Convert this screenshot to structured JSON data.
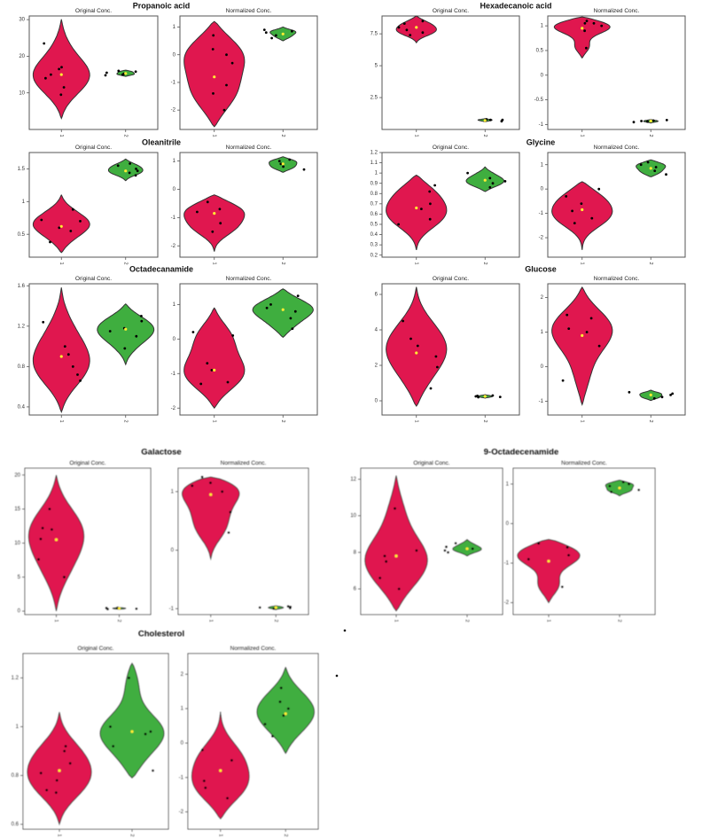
{
  "figure": {
    "colors": {
      "group1": "#e0174f",
      "group2": "#3fae3f",
      "points": "#000000",
      "mean": "#ffee33"
    },
    "panel_titles": [
      "Original Conc.",
      "Normalized Conc."
    ],
    "group_tick_labels": [
      "1",
      "2"
    ]
  },
  "chart_data": [
    {
      "type": "violin",
      "metabolite": "Propanoic acid",
      "panels": [
        {
          "title": "Original Conc.",
          "ylim": [
            0,
            31
          ],
          "yticks": [
            10,
            20,
            30
          ],
          "groups": [
            {
              "label": "1",
              "violin_range": [
                3,
                30
              ],
              "mean": 15,
              "points": [
                9.5,
                11.5,
                14,
                15,
                16.5,
                17,
                23.5
              ]
            },
            {
              "label": "2",
              "violin_range": [
                14.5,
                16.2
              ],
              "mean": 15.3,
              "points": [
                14.8,
                15,
                15.2,
                15.5,
                15.8,
                16
              ]
            }
          ]
        },
        {
          "title": "Normalized Conc.",
          "ylim": [
            -2.7,
            1.4
          ],
          "yticks": [
            -2,
            -1,
            0,
            1
          ],
          "groups": [
            {
              "label": "1",
              "violin_range": [
                -2.6,
                1.2
              ],
              "mean": -0.8,
              "points": [
                -2,
                -1.4,
                -1.1,
                -0.3,
                0,
                0.2,
                0.7
              ]
            },
            {
              "label": "2",
              "violin_range": [
                0.5,
                1
              ],
              "mean": 0.75,
              "points": [
                0.6,
                0.7,
                0.8,
                0.85,
                0.9
              ]
            }
          ]
        }
      ]
    },
    {
      "type": "violin",
      "metabolite": "Hexadecanoic acid",
      "panels": [
        {
          "title": "Original Conc.",
          "ylim": [
            0,
            8.9
          ],
          "yticks": [
            2.5,
            5,
            7.5
          ],
          "groups": [
            {
              "label": "1",
              "violin_range": [
                6.8,
                8.9
              ],
              "mean": 8,
              "points": [
                7.4,
                7.6,
                7.8,
                8,
                8.3,
                8.5
              ]
            },
            {
              "label": "2",
              "violin_range": [
                0.6,
                0.85
              ],
              "mean": 0.7,
              "points": [
                0.65,
                0.7,
                0.75,
                0.75,
                0.8
              ]
            }
          ]
        },
        {
          "title": "Normalized Conc.",
          "ylim": [
            -1.1,
            1.2
          ],
          "yticks": [
            -1,
            -0.5,
            0,
            0.5,
            1
          ],
          "groups": [
            {
              "label": "1",
              "violin_range": [
                0.35,
                1.18
              ],
              "mean": 0.95,
              "points": [
                0.55,
                0.9,
                1,
                1.05,
                1.05,
                1.1
              ]
            },
            {
              "label": "2",
              "violin_range": [
                -0.97,
                -0.9
              ],
              "mean": -0.93,
              "points": [
                -0.95,
                -0.94,
                -0.93,
                -0.92,
                -0.91
              ]
            }
          ]
        }
      ]
    },
    {
      "type": "violin",
      "metabolite": "Oleanitrile",
      "panels": [
        {
          "title": "Original Conc.",
          "ylim": [
            0.15,
            1.75
          ],
          "yticks": [
            0.5,
            1,
            1.5
          ],
          "groups": [
            {
              "label": "1",
              "violin_range": [
                0.22,
                1.1
              ],
              "mean": 0.62,
              "points": [
                0.38,
                0.55,
                0.6,
                0.7,
                0.72,
                0.88
              ]
            },
            {
              "label": "2",
              "violin_range": [
                1.32,
                1.65
              ],
              "mean": 1.47,
              "points": [
                1.4,
                1.44,
                1.47,
                1.5,
                1.55,
                1.58
              ]
            }
          ]
        },
        {
          "title": "Normalized Conc.",
          "ylim": [
            -2.4,
            1.3
          ],
          "yticks": [
            -2,
            -1,
            0,
            1
          ],
          "groups": [
            {
              "label": "1",
              "violin_range": [
                -2.2,
                -0.2
              ],
              "mean": -0.85,
              "points": [
                -1.5,
                -1.2,
                -0.8,
                -0.7,
                -0.45
              ]
            },
            {
              "label": "2",
              "violin_range": [
                0.6,
                1.15
              ],
              "mean": 0.9,
              "points": [
                0.7,
                0.8,
                0.9,
                1,
                1.05
              ]
            }
          ]
        }
      ]
    },
    {
      "type": "violin",
      "metabolite": "Glycine",
      "panels": [
        {
          "title": "Original Conc.",
          "ylim": [
            0.18,
            1.2
          ],
          "yticks": [
            0.2,
            0.3,
            0.4,
            0.5,
            0.6,
            0.7,
            0.8,
            0.9,
            1,
            1.1,
            1.2
          ],
          "groups": [
            {
              "label": "1",
              "violin_range": [
                0.25,
                0.98
              ],
              "mean": 0.66,
              "points": [
                0.5,
                0.55,
                0.65,
                0.7,
                0.82,
                0.88
              ]
            },
            {
              "label": "2",
              "violin_range": [
                0.82,
                1.06
              ],
              "mean": 0.93,
              "points": [
                0.86,
                0.9,
                0.92,
                0.95,
                1
              ]
            }
          ]
        },
        {
          "title": "Normalized Conc.",
          "ylim": [
            -2.8,
            1.5
          ],
          "yticks": [
            -2,
            -1,
            0,
            1
          ],
          "groups": [
            {
              "label": "1",
              "violin_range": [
                -2.5,
                0.3
              ],
              "mean": -0.85,
              "points": [
                -1.4,
                -1.2,
                -0.9,
                -0.6,
                -0.3,
                0
              ]
            },
            {
              "label": "2",
              "violin_range": [
                0.5,
                1.2
              ],
              "mean": 0.85,
              "points": [
                0.6,
                0.75,
                0.9,
                1,
                1.1
              ]
            }
          ]
        }
      ]
    },
    {
      "type": "violin",
      "metabolite": "Octadecanamide",
      "panels": [
        {
          "title": "Original Conc.",
          "ylim": [
            0.32,
            1.62
          ],
          "yticks": [
            0.4,
            0.8,
            1.2,
            1.6
          ],
          "groups": [
            {
              "label": "1",
              "violin_range": [
                0.35,
                1.58
              ],
              "mean": 0.9,
              "points": [
                0.66,
                0.72,
                0.8,
                0.92,
                1,
                1.24
              ]
            },
            {
              "label": "2",
              "violin_range": [
                0.82,
                1.42
              ],
              "mean": 1.17,
              "points": [
                0.98,
                1.1,
                1.15,
                1.18,
                1.25,
                1.3
              ]
            }
          ]
        },
        {
          "title": "Normalized Conc.",
          "ylim": [
            -2.2,
            1.6
          ],
          "yticks": [
            -2,
            -1,
            0,
            1
          ],
          "groups": [
            {
              "label": "1",
              "violin_range": [
                -2,
                0.9
              ],
              "mean": -0.9,
              "points": [
                -1.3,
                -1.25,
                -0.9,
                -0.7,
                0.1,
                0.2
              ]
            },
            {
              "label": "2",
              "violin_range": [
                0.05,
                1.45
              ],
              "mean": 0.85,
              "points": [
                0.3,
                0.6,
                0.8,
                0.9,
                1,
                1.25
              ]
            }
          ]
        }
      ]
    },
    {
      "type": "violin",
      "metabolite": "Glucose",
      "panels": [
        {
          "title": "Original Conc.",
          "ylim": [
            -0.8,
            6.6
          ],
          "yticks": [
            0,
            2,
            4,
            6
          ],
          "groups": [
            {
              "label": "1",
              "violin_range": [
                -0.3,
                6.4
              ],
              "mean": 2.7,
              "points": [
                0.7,
                1.9,
                2.5,
                3.1,
                3.5,
                4.5
              ]
            },
            {
              "label": "2",
              "violin_range": [
                0.15,
                0.35
              ],
              "mean": 0.25,
              "points": [
                0.2,
                0.22,
                0.25,
                0.28,
                0.3
              ]
            }
          ]
        },
        {
          "title": "Normalized Conc.",
          "ylim": [
            -1.4,
            2.4
          ],
          "yticks": [
            -1,
            0,
            1,
            2
          ],
          "groups": [
            {
              "label": "1",
              "violin_range": [
                -1.1,
                2.3
              ],
              "mean": 0.9,
              "points": [
                -0.4,
                0.6,
                1,
                1.1,
                1.4,
                1.5
              ]
            },
            {
              "label": "2",
              "violin_range": [
                -0.98,
                -0.68
              ],
              "mean": -0.82,
              "points": [
                -0.92,
                -0.88,
                -0.82,
                -0.78,
                -0.74
              ]
            }
          ]
        }
      ]
    },
    {
      "type": "violin",
      "metabolite": "Galactose",
      "panels": [
        {
          "title": "Original Conc.",
          "ylim": [
            -0.5,
            21
          ],
          "yticks": [
            0,
            5,
            10,
            15,
            20
          ],
          "groups": [
            {
              "label": "1",
              "violin_range": [
                0,
                20
              ],
              "mean": 10.5,
              "points": [
                5,
                7.6,
                10.6,
                12,
                12.2,
                15
              ]
            },
            {
              "label": "2",
              "violin_range": [
                0.25,
                0.55
              ],
              "mean": 0.4,
              "points": [
                0.3,
                0.35,
                0.4,
                0.45,
                0.5
              ]
            }
          ]
        },
        {
          "title": "Normalized Conc.",
          "ylim": [
            -1.1,
            1.4
          ],
          "yticks": [
            -1,
            0,
            1
          ],
          "groups": [
            {
              "label": "1",
              "violin_range": [
                -0.15,
                1.25
              ],
              "mean": 0.95,
              "points": [
                0.3,
                0.65,
                1,
                1.1,
                1.15,
                1.25
              ]
            },
            {
              "label": "2",
              "violin_range": [
                -1.02,
                -0.95
              ],
              "mean": -0.98,
              "points": [
                -1,
                -0.99,
                -0.98,
                -0.97,
                -0.96
              ]
            }
          ]
        }
      ]
    },
    {
      "type": "violin",
      "metabolite": "9-Octadecenamide",
      "panels": [
        {
          "title": "Original Conc.",
          "ylim": [
            4.6,
            12.6
          ],
          "yticks": [
            6,
            8,
            10,
            12
          ],
          "groups": [
            {
              "label": "1",
              "violin_range": [
                4.8,
                12.2
              ],
              "mean": 7.8,
              "points": [
                6,
                6.6,
                7.5,
                7.8,
                8.1,
                10.4
              ]
            },
            {
              "label": "2",
              "violin_range": [
                7.8,
                8.7
              ],
              "mean": 8.2,
              "points": [
                8,
                8.1,
                8.2,
                8.3,
                8.5
              ]
            }
          ]
        },
        {
          "title": "Normalized Conc.",
          "ylim": [
            -2.3,
            1.4
          ],
          "yticks": [
            -2,
            -1,
            0,
            1
          ],
          "groups": [
            {
              "label": "1",
              "violin_range": [
                -2,
                -0.4
              ],
              "mean": -0.95,
              "points": [
                -1.6,
                -0.9,
                -0.8,
                -0.6,
                -0.5
              ]
            },
            {
              "label": "2",
              "violin_range": [
                0.7,
                1.1
              ],
              "mean": 0.9,
              "points": [
                0.8,
                0.85,
                0.95,
                1,
                1.05
              ]
            }
          ]
        }
      ]
    },
    {
      "type": "violin",
      "metabolite": "Cholesterol",
      "panels": [
        {
          "title": "Original Conc.",
          "ylim": [
            0.58,
            1.3
          ],
          "yticks": [
            0.6,
            0.8,
            1,
            1.2
          ],
          "groups": [
            {
              "label": "1",
              "violin_range": [
                0.6,
                1.06
              ],
              "mean": 0.82,
              "points": [
                0.73,
                0.74,
                0.78,
                0.81,
                0.85,
                0.9,
                0.92
              ]
            },
            {
              "label": "2",
              "violin_range": [
                0.79,
                1.26
              ],
              "mean": 0.98,
              "points": [
                0.82,
                0.92,
                0.97,
                0.98,
                1,
                1.2
              ]
            }
          ]
        },
        {
          "title": "Normalized Conc.",
          "ylim": [
            -2.5,
            2.6
          ],
          "yticks": [
            -2,
            -1,
            0,
            1,
            2
          ],
          "groups": [
            {
              "label": "1",
              "violin_range": [
                -2.2,
                0.9
              ],
              "mean": -0.8,
              "points": [
                -1.6,
                -1.3,
                -1.1,
                -0.5,
                -0.2
              ]
            },
            {
              "label": "2",
              "violin_range": [
                -0.3,
                2.2
              ],
              "mean": 0.85,
              "points": [
                0.2,
                0.55,
                0.8,
                1,
                1.2,
                1.6
              ]
            }
          ]
        }
      ]
    }
  ]
}
